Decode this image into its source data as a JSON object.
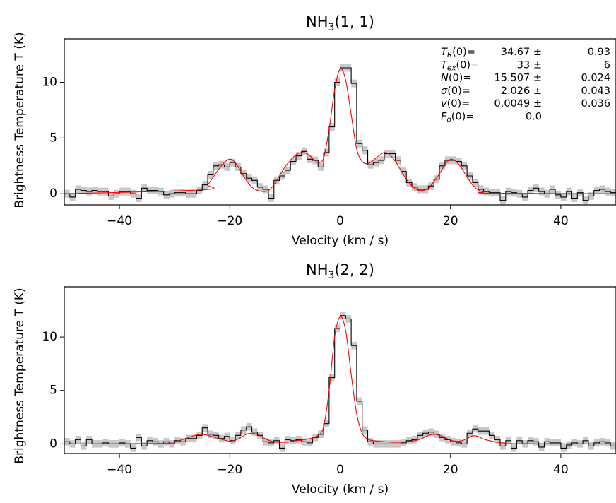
{
  "ylabel": "Brightness Temperature T (K)",
  "chart_data": [
    {
      "type": "line",
      "title": "NH3(1,1)",
      "title_main": "NH",
      "title_sub": "3",
      "title_rest": "(1, 1)",
      "xlabel": "Velocity (km / s)",
      "xlim": [
        -50,
        50
      ],
      "ylim": [
        -1.0,
        13.9
      ],
      "xticks": [
        -40,
        -20,
        0,
        20,
        40
      ],
      "xtick_labels": [
        "−40",
        "−20",
        "0",
        "20",
        "40"
      ],
      "yticks": [
        0,
        5,
        10
      ],
      "ytick_labels": [
        "0",
        "5",
        "10"
      ],
      "grid": false,
      "annotations": [
        {
          "var": "T",
          "sub": "R",
          "rest": "(0)=",
          "value": "34.67 ±",
          "err": "0.93"
        },
        {
          "var": "T",
          "sub": "ex",
          "rest": "(0)=",
          "value": "33 ±",
          "err": "6"
        },
        {
          "var": "N",
          "sub": "",
          "rest": "(0)=",
          "value": "15.507 ±",
          "err": "0.024"
        },
        {
          "var": "σ",
          "sub": "",
          "rest": "(0)=",
          "value": "2.026 ±",
          "err": "0.043"
        },
        {
          "var": "v",
          "sub": "",
          "rest": "(0)=",
          "value": "0.0049 ±",
          "err": "0.036"
        },
        {
          "var": "F",
          "sub": "o",
          "rest": "(0)=",
          "value": "0.0",
          "err": ""
        }
      ],
      "series": [
        {
          "style": "step",
          "color": "#000000",
          "uncertainty_band_color": "#c8c8c8",
          "uncertainty": 0.35,
          "x": [
            -50,
            -49,
            -48,
            -47,
            -46,
            -45,
            -44,
            -43,
            -42,
            -41,
            -40,
            -39,
            -38,
            -37,
            -36,
            -35,
            -34,
            -33,
            -32,
            -31,
            -30,
            -29,
            -28,
            -27,
            -26,
            -25,
            -24,
            -23,
            -22,
            -21,
            -20,
            -19,
            -18,
            -17,
            -16,
            -15,
            -14,
            -13,
            -12,
            -11,
            -10,
            -9,
            -8,
            -7,
            -6,
            -5,
            -4,
            -3,
            -2,
            -1,
            0,
            1,
            2,
            3,
            4,
            5,
            6,
            7,
            8,
            9,
            10,
            11,
            12,
            13,
            14,
            15,
            16,
            17,
            18,
            19,
            20,
            21,
            22,
            23,
            24,
            25,
            26,
            27,
            28,
            29,
            30,
            31,
            32,
            33,
            34,
            35,
            36,
            37,
            38,
            39,
            40,
            41,
            42,
            43,
            44,
            45,
            46,
            47,
            48,
            49
          ],
          "y": [
            0.0,
            -0.3,
            0.4,
            0.3,
            0.2,
            0.3,
            0.2,
            0.2,
            -0.2,
            0.0,
            0.2,
            0.2,
            0.0,
            -0.4,
            0.5,
            0.3,
            0.3,
            0.2,
            -0.1,
            0.0,
            0.1,
            0.1,
            0.0,
            0.0,
            0.3,
            0.8,
            1.7,
            2.5,
            2.6,
            2.4,
            2.8,
            2.4,
            1.8,
            1.4,
            1.2,
            0.6,
            0.4,
            -0.4,
            1.2,
            1.6,
            2.1,
            2.9,
            3.4,
            3.8,
            3.1,
            3.0,
            2.4,
            3.7,
            6.0,
            10.0,
            11.3,
            11.3,
            9.9,
            4.5,
            3.9,
            2.6,
            2.8,
            3.0,
            3.6,
            3.6,
            3.0,
            2.0,
            1.0,
            0.6,
            0.4,
            0.4,
            0.7,
            1.3,
            2.5,
            3.0,
            3.0,
            2.9,
            2.5,
            1.6,
            1.0,
            0.4,
            0.2,
            0.1,
            0.1,
            -0.6,
            0.2,
            0.1,
            0.0,
            -0.3,
            0.3,
            0.5,
            0.2,
            0.0,
            0.4,
            -0.1,
            -0.3,
            0.2,
            -0.4,
            0.1,
            -0.6,
            -0.2,
            0.3,
            0.4,
            0.2,
            0.1
          ]
        },
        {
          "style": "line",
          "color": "#ff0000",
          "x": [
            -50,
            -25,
            -24,
            -23,
            -22,
            -21,
            -20,
            -19,
            -18,
            -17,
            -16,
            -15,
            -14,
            -13,
            -12,
            -11,
            -10,
            -9,
            -8,
            -7,
            -6,
            -5,
            -4,
            -3,
            -2,
            -1,
            0,
            1,
            2,
            3,
            4,
            5,
            6,
            7,
            8,
            9,
            10,
            11,
            12,
            13,
            14,
            15,
            16,
            17,
            18,
            19,
            20,
            21,
            22,
            23,
            24,
            25,
            26,
            27,
            50
          ],
          "y": [
            0.0,
            0.35,
            0.8,
            1.5,
            2.2,
            2.8,
            3.1,
            2.8,
            2.0,
            1.2,
            0.6,
            0.3,
            0.2,
            0.3,
            0.8,
            1.6,
            2.4,
            3.0,
            3.5,
            3.7,
            3.6,
            3.2,
            2.8,
            3.2,
            5.8,
            9.3,
            11.2,
            10.2,
            7.1,
            4.0,
            2.9,
            2.7,
            3.0,
            3.4,
            3.7,
            3.5,
            2.9,
            2.1,
            1.3,
            0.7,
            0.35,
            0.3,
            0.5,
            1.1,
            1.8,
            2.6,
            3.1,
            2.9,
            2.3,
            1.5,
            0.8,
            0.35,
            0.15,
            0.05,
            0.0
          ]
        }
      ]
    },
    {
      "type": "line",
      "title": "NH3(2,2)",
      "title_main": "NH",
      "title_sub": "3",
      "title_rest": "(2, 2)",
      "xlabel": "Velocity (km / s)",
      "xlim": [
        -50,
        50
      ],
      "ylim": [
        -0.9,
        14.7
      ],
      "xticks": [
        -40,
        -20,
        0,
        20,
        40
      ],
      "xtick_labels": [
        "−40",
        "−20",
        "0",
        "20",
        "40"
      ],
      "yticks": [
        0,
        5,
        10
      ],
      "ytick_labels": [
        "0",
        "5",
        "10"
      ],
      "grid": false,
      "series": [
        {
          "style": "step",
          "color": "#000000",
          "uncertainty_band_color": "#c8c8c8",
          "uncertainty": 0.35,
          "x": [
            -50,
            -49,
            -48,
            -47,
            -46,
            -45,
            -44,
            -43,
            -42,
            -41,
            -40,
            -39,
            -38,
            -37,
            -36,
            -35,
            -34,
            -33,
            -32,
            -31,
            -30,
            -29,
            -28,
            -27,
            -26,
            -25,
            -24,
            -23,
            -22,
            -21,
            -20,
            -19,
            -18,
            -17,
            -16,
            -15,
            -14,
            -13,
            -12,
            -11,
            -10,
            -9,
            -8,
            -7,
            -6,
            -5,
            -4,
            -3,
            -2,
            -1,
            0,
            1,
            2,
            3,
            4,
            5,
            6,
            7,
            8,
            9,
            10,
            11,
            12,
            13,
            14,
            15,
            16,
            17,
            18,
            19,
            20,
            21,
            22,
            23,
            24,
            25,
            26,
            27,
            28,
            29,
            30,
            31,
            32,
            33,
            34,
            35,
            36,
            37,
            38,
            39,
            40,
            41,
            42,
            43,
            44,
            45,
            46,
            47,
            48,
            49
          ],
          "y": [
            0.2,
            0.0,
            0.4,
            -0.2,
            0.4,
            0.0,
            0.0,
            0.1,
            0.0,
            0.0,
            0.1,
            0.0,
            -0.4,
            0.6,
            -0.2,
            0.3,
            0.2,
            0.0,
            0.2,
            0.0,
            0.3,
            0.2,
            0.5,
            0.5,
            0.8,
            1.5,
            0.9,
            0.8,
            0.5,
            0.7,
            0.3,
            0.8,
            1.3,
            1.6,
            1.1,
            0.8,
            0.2,
            0.1,
            0.3,
            -0.4,
            0.4,
            0.3,
            0.4,
            0.2,
            0.1,
            0.6,
            0.9,
            1.9,
            6.2,
            10.8,
            12.0,
            11.7,
            9.2,
            4.0,
            1.3,
            0.2,
            0.0,
            0.0,
            0.0,
            0.0,
            0.0,
            0.1,
            0.3,
            0.4,
            0.8,
            1.0,
            1.1,
            0.9,
            0.6,
            0.4,
            0.2,
            0.1,
            0.0,
            1.0,
            1.4,
            1.2,
            1.2,
            0.8,
            0.4,
            -0.2,
            0.3,
            -0.4,
            0.3,
            0.0,
            0.3,
            0.2,
            -0.3,
            0.2,
            0.1,
            0.1,
            -0.4,
            -0.1,
            0.1,
            0.0,
            0.3,
            -0.2,
            0.1,
            0.2,
            0.1,
            -0.2
          ]
        },
        {
          "style": "line",
          "color": "#ff0000",
          "x": [
            -50,
            -32,
            -30,
            -28,
            -26,
            -25,
            -24,
            -22,
            -20,
            -19,
            -18,
            -17,
            -16,
            -15,
            -14,
            -13,
            -12,
            -11,
            -10,
            -9,
            -8,
            -7,
            -6,
            -5,
            -4,
            -3,
            -2,
            -1,
            0,
            1,
            2,
            3,
            4,
            5,
            6,
            7,
            8,
            10,
            12,
            14,
            15,
            16,
            17,
            18,
            19,
            20,
            21,
            22,
            23,
            24,
            25,
            26,
            28,
            30,
            32,
            50
          ],
          "y": [
            0.0,
            0.05,
            0.2,
            0.5,
            0.85,
            0.9,
            0.8,
            0.5,
            0.25,
            0.35,
            0.6,
            0.9,
            1.0,
            0.9,
            0.6,
            0.35,
            0.2,
            0.15,
            0.15,
            0.2,
            0.3,
            0.35,
            0.45,
            0.55,
            0.8,
            1.6,
            5.0,
            10.0,
            11.9,
            10.6,
            6.5,
            2.8,
            1.0,
            0.45,
            0.3,
            0.25,
            0.2,
            0.15,
            0.2,
            0.35,
            0.55,
            0.8,
            0.9,
            0.8,
            0.6,
            0.35,
            0.25,
            0.3,
            0.5,
            0.75,
            0.7,
            0.45,
            0.2,
            0.07,
            0.02,
            0.0
          ]
        }
      ]
    }
  ]
}
